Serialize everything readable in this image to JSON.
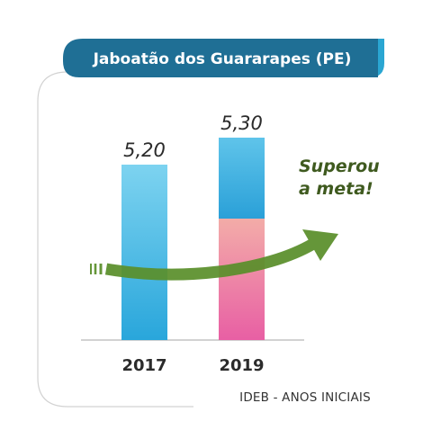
{
  "chart_data": {
    "type": "bar",
    "title": "Jaboatão dos Guararapes (PE)",
    "categories": [
      "2017",
      "2019"
    ],
    "values": [
      5.2,
      5.3
    ],
    "value_labels": [
      "5,20",
      "5,30"
    ],
    "annotation": [
      "Superou",
      "a meta!"
    ],
    "footer": "IDEB - ANOS INICIAIS",
    "ylim": [
      4.55,
      5.3
    ],
    "target": 5.0,
    "grid": false,
    "legend": "none",
    "colors": {
      "title_banner": "#1f6f95",
      "title_banner_accent": "#2aa6d2",
      "bar_2017_top": "#7dd3f0",
      "bar_2017_bottom": "#29a6db",
      "bar_2019_cap": "#35a8dc",
      "bar_2019_top": "#f9d79a",
      "bar_2019_bottom": "#e85fa4",
      "arrow": "#5a8f2b",
      "annotation": "#3f5a1f"
    }
  }
}
